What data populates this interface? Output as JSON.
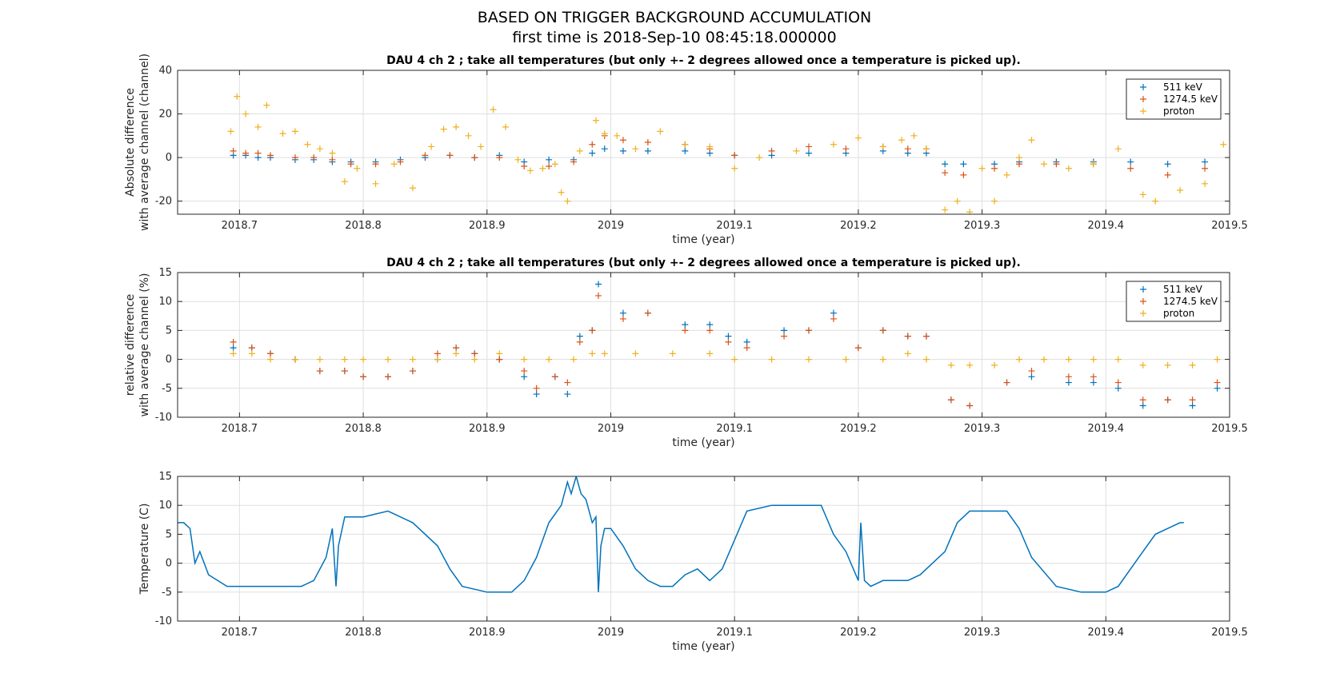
{
  "figure": {
    "title_line1": "BASED ON TRIGGER BACKGROUND ACCUMULATION",
    "title_line2": "first time is 2018-Sep-10 08:45:18.000000"
  },
  "colors": {
    "s511": "#0072BD",
    "s1274": "#D95319",
    "proton": "#EDB120",
    "temp": "#0072BD",
    "grid": "#dfdfdf",
    "axis": "#262626"
  },
  "chart_data": [
    {
      "type": "scatter",
      "title": "DAU 4 ch 2 ; take all temperatures (but only +- 2 degrees allowed once a temperature is picked up).",
      "xlabel": "time (year)",
      "ylabel_line1": "Absolute difference",
      "ylabel_line2": "with average channel (channel)",
      "xlim": [
        2018.65,
        2019.5
      ],
      "ylim": [
        -26,
        40
      ],
      "xticks": [
        2018.7,
        2018.8,
        2018.9,
        2019,
        2019.1,
        2019.2,
        2019.3,
        2019.4,
        2019.5
      ],
      "xtick_labels": [
        "2018.7",
        "2018.8",
        "2018.9",
        "2019",
        "2019.1",
        "2019.2",
        "2019.3",
        "2019.4",
        "2019.5"
      ],
      "yticks": [
        -20,
        0,
        20,
        40
      ],
      "ytick_labels": [
        "-20",
        "0",
        "20",
        "40"
      ],
      "grid": true,
      "legend_position": "top-right",
      "series": [
        {
          "name": "511 keV",
          "color": "#0072BD",
          "x": [
            2018.695,
            2018.705,
            2018.715,
            2018.725,
            2018.745,
            2018.76,
            2018.775,
            2018.79,
            2018.81,
            2018.83,
            2018.85,
            2018.87,
            2018.89,
            2018.91,
            2018.93,
            2018.95,
            2018.97,
            2018.985,
            2018.995,
            2019.01,
            2019.03,
            2019.06,
            2019.08,
            2019.1,
            2019.13,
            2019.16,
            2019.19,
            2019.22,
            2019.24,
            2019.255,
            2019.27,
            2019.285,
            2019.31,
            2019.33,
            2019.36,
            2019.39,
            2019.42,
            2019.45,
            2019.48
          ],
          "y": [
            1,
            1,
            0,
            0,
            -1,
            -1,
            -2,
            -2,
            -2,
            -1,
            0,
            1,
            0,
            1,
            -2,
            -1,
            -1,
            2,
            4,
            3,
            3,
            3,
            2,
            1,
            1,
            2,
            2,
            3,
            2,
            2,
            -3,
            -3,
            -3,
            -2,
            -2,
            -2,
            -2,
            -3,
            -2
          ]
        },
        {
          "name": "1274.5 keV",
          "color": "#D95319",
          "x": [
            2018.695,
            2018.705,
            2018.715,
            2018.725,
            2018.745,
            2018.76,
            2018.775,
            2018.79,
            2018.81,
            2018.83,
            2018.85,
            2018.87,
            2018.89,
            2018.91,
            2018.93,
            2018.95,
            2018.97,
            2018.985,
            2018.995,
            2019.01,
            2019.03,
            2019.06,
            2019.08,
            2019.1,
            2019.13,
            2019.16,
            2019.19,
            2019.22,
            2019.24,
            2019.255,
            2019.27,
            2019.285,
            2019.31,
            2019.33,
            2019.36,
            2019.39,
            2019.42,
            2019.45,
            2019.48
          ],
          "y": [
            3,
            2,
            2,
            1,
            0,
            0,
            -1,
            -3,
            -3,
            -2,
            1,
            1,
            0,
            0,
            -4,
            -4,
            -2,
            6,
            10,
            8,
            7,
            6,
            4,
            1,
            3,
            5,
            4,
            5,
            4,
            4,
            -7,
            -8,
            -5,
            -3,
            -3,
            -3,
            -5,
            -8,
            -5
          ]
        },
        {
          "name": "proton",
          "color": "#EDB120",
          "x": [
            2018.693,
            2018.698,
            2018.705,
            2018.715,
            2018.722,
            2018.735,
            2018.745,
            2018.755,
            2018.765,
            2018.775,
            2018.785,
            2018.795,
            2018.81,
            2018.825,
            2018.84,
            2018.855,
            2018.865,
            2018.875,
            2018.885,
            2018.895,
            2018.905,
            2018.915,
            2018.925,
            2018.935,
            2018.945,
            2018.955,
            2018.96,
            2018.965,
            2018.975,
            2018.988,
            2018.995,
            2019.005,
            2019.02,
            2019.04,
            2019.06,
            2019.08,
            2019.1,
            2019.12,
            2019.15,
            2019.18,
            2019.2,
            2019.22,
            2019.235,
            2019.245,
            2019.255,
            2019.27,
            2019.28,
            2019.29,
            2019.3,
            2019.31,
            2019.32,
            2019.33,
            2019.34,
            2019.35,
            2019.37,
            2019.39,
            2019.41,
            2019.43,
            2019.44,
            2019.46,
            2019.48,
            2019.495
          ],
          "y": [
            12,
            28,
            20,
            14,
            24,
            11,
            12,
            6,
            4,
            2,
            -11,
            -5,
            -12,
            -3,
            -14,
            5,
            13,
            14,
            10,
            5,
            22,
            14,
            -1,
            -6,
            -5,
            -3,
            -16,
            -20,
            3,
            17,
            11,
            10,
            4,
            12,
            6,
            5,
            -5,
            0,
            3,
            6,
            9,
            5,
            8,
            10,
            4,
            -24,
            -20,
            -25,
            -5,
            -20,
            -8,
            0,
            8,
            -3,
            -5,
            -3,
            4,
            -17,
            -20,
            -15,
            -12,
            6
          ]
        }
      ]
    },
    {
      "type": "scatter",
      "title": "DAU 4 ch 2 ; take all temperatures (but only +- 2 degrees allowed once a temperature is picked up).",
      "xlabel": "time (year)",
      "ylabel_line1": "relative difference",
      "ylabel_line2": "with average channel (%)",
      "xlim": [
        2018.65,
        2019.5
      ],
      "ylim": [
        -10,
        15
      ],
      "xticks": [
        2018.7,
        2018.8,
        2018.9,
        2019,
        2019.1,
        2019.2,
        2019.3,
        2019.4,
        2019.5
      ],
      "xtick_labels": [
        "2018.7",
        "2018.8",
        "2018.9",
        "2019",
        "2019.1",
        "2019.2",
        "2019.3",
        "2019.4",
        "2019.5"
      ],
      "yticks": [
        -10,
        -5,
        0,
        5,
        10,
        15
      ],
      "ytick_labels": [
        "-10",
        "-5",
        "0",
        "5",
        "10",
        "15"
      ],
      "grid": true,
      "legend_position": "top-right",
      "series": [
        {
          "name": "511 keV",
          "color": "#0072BD",
          "x": [
            2018.695,
            2018.71,
            2018.725,
            2018.745,
            2018.765,
            2018.785,
            2018.8,
            2018.82,
            2018.84,
            2018.86,
            2018.875,
            2018.89,
            2018.91,
            2018.93,
            2018.94,
            2018.955,
            2018.965,
            2018.975,
            2018.985,
            2018.99,
            2019.01,
            2019.03,
            2019.06,
            2019.08,
            2019.095,
            2019.11,
            2019.14,
            2019.16,
            2019.18,
            2019.2,
            2019.22,
            2019.24,
            2019.255,
            2019.275,
            2019.29,
            2019.32,
            2019.34,
            2019.37,
            2019.39,
            2019.41,
            2019.43,
            2019.45,
            2019.47,
            2019.49
          ],
          "y": [
            2,
            2,
            1,
            0,
            -2,
            -2,
            -3,
            -3,
            -2,
            0,
            2,
            1,
            0,
            -3,
            -6,
            -3,
            -6,
            4,
            5,
            13,
            8,
            8,
            6,
            6,
            4,
            3,
            5,
            5,
            8,
            2,
            5,
            4,
            4,
            -7,
            -8,
            -4,
            -3,
            -4,
            -4,
            -5,
            -8,
            -7,
            -8,
            -5
          ]
        },
        {
          "name": "1274.5 keV",
          "color": "#D95319",
          "x": [
            2018.695,
            2018.71,
            2018.725,
            2018.745,
            2018.765,
            2018.785,
            2018.8,
            2018.82,
            2018.84,
            2018.86,
            2018.875,
            2018.89,
            2018.91,
            2018.93,
            2018.94,
            2018.955,
            2018.965,
            2018.975,
            2018.985,
            2018.99,
            2019.01,
            2019.03,
            2019.06,
            2019.08,
            2019.095,
            2019.11,
            2019.14,
            2019.16,
            2019.18,
            2019.2,
            2019.22,
            2019.24,
            2019.255,
            2019.275,
            2019.29,
            2019.32,
            2019.34,
            2019.37,
            2019.39,
            2019.41,
            2019.43,
            2019.45,
            2019.47,
            2019.49
          ],
          "y": [
            3,
            2,
            1,
            0,
            -2,
            -2,
            -3,
            -3,
            -2,
            1,
            2,
            1,
            0,
            -2,
            -5,
            -3,
            -4,
            3,
            5,
            11,
            7,
            8,
            5,
            5,
            3,
            2,
            4,
            5,
            7,
            2,
            5,
            4,
            4,
            -7,
            -8,
            -4,
            -2,
            -3,
            -3,
            -4,
            -7,
            -7,
            -7,
            -4
          ]
        },
        {
          "name": "proton",
          "color": "#EDB120",
          "x": [
            2018.695,
            2018.71,
            2018.725,
            2018.745,
            2018.765,
            2018.785,
            2018.8,
            2018.82,
            2018.84,
            2018.86,
            2018.875,
            2018.89,
            2018.91,
            2018.93,
            2018.95,
            2018.97,
            2018.985,
            2018.995,
            2019.02,
            2019.05,
            2019.08,
            2019.1,
            2019.13,
            2019.16,
            2019.19,
            2019.22,
            2019.24,
            2019.255,
            2019.275,
            2019.29,
            2019.31,
            2019.33,
            2019.35,
            2019.37,
            2019.39,
            2019.41,
            2019.43,
            2019.45,
            2019.47,
            2019.49
          ],
          "y": [
            1,
            1,
            0,
            0,
            0,
            0,
            0,
            0,
            0,
            0,
            1,
            0,
            1,
            0,
            0,
            0,
            1,
            1,
            1,
            1,
            1,
            0,
            0,
            0,
            0,
            0,
            1,
            0,
            -1,
            -1,
            -1,
            0,
            0,
            0,
            0,
            0,
            -1,
            -1,
            -1,
            0
          ]
        }
      ]
    },
    {
      "type": "line",
      "title": "",
      "xlabel": "time (year)",
      "ylabel": "Temperature (C)",
      "xlim": [
        2018.65,
        2019.5
      ],
      "ylim": [
        -10,
        15
      ],
      "xticks": [
        2018.7,
        2018.8,
        2018.9,
        2019,
        2019.1,
        2019.2,
        2019.3,
        2019.4,
        2019.5
      ],
      "xtick_labels": [
        "2018.7",
        "2018.8",
        "2018.9",
        "2019",
        "2019.1",
        "2019.2",
        "2019.3",
        "2019.4",
        "2019.5"
      ],
      "yticks": [
        -10,
        -5,
        0,
        5,
        10,
        15
      ],
      "ytick_labels": [
        "-10",
        "-5",
        "0",
        "5",
        "10",
        "15"
      ],
      "grid": true,
      "series": [
        {
          "name": "",
          "color": "#0072BD",
          "x": [
            2018.65,
            2018.655,
            2018.66,
            2018.664,
            2018.668,
            2018.675,
            2018.69,
            2018.7,
            2018.72,
            2018.74,
            2018.75,
            2018.76,
            2018.77,
            2018.775,
            2018.778,
            2018.78,
            2018.785,
            2018.79,
            2018.8,
            2018.82,
            2018.83,
            2018.84,
            2018.86,
            2018.87,
            2018.88,
            2018.9,
            2018.92,
            2018.93,
            2018.94,
            2018.95,
            2018.96,
            2018.965,
            2018.968,
            2018.972,
            2018.976,
            2018.98,
            2018.985,
            2018.988,
            2018.99,
            2018.992,
            2018.995,
            2019,
            2019.01,
            2019.02,
            2019.03,
            2019.04,
            2019.05,
            2019.06,
            2019.07,
            2019.08,
            2019.09,
            2019.1,
            2019.11,
            2019.13,
            2019.15,
            2019.16,
            2019.17,
            2019.18,
            2019.19,
            2019.2,
            2019.202,
            2019.205,
            2019.21,
            2019.22,
            2019.23,
            2019.24,
            2019.25,
            2019.26,
            2019.27,
            2019.28,
            2019.29,
            2019.31,
            2019.32,
            2019.33,
            2019.34,
            2019.36,
            2019.38,
            2019.4,
            2019.41,
            2019.42,
            2019.43,
            2019.44,
            2019.45,
            2019.46,
            2019.463
          ],
          "y": [
            7,
            7,
            6,
            0,
            2,
            -2,
            -4,
            -4,
            -4,
            -4,
            -4,
            -3,
            1,
            6,
            -4,
            3,
            8,
            8,
            8,
            9,
            8,
            7,
            3,
            -1,
            -4,
            -5,
            -5,
            -3,
            1,
            7,
            10,
            14,
            12,
            15,
            12,
            11,
            7,
            8,
            -5,
            3,
            6,
            6,
            3,
            -1,
            -3,
            -4,
            -4,
            -2,
            -1,
            -3,
            -1,
            4,
            9,
            10,
            10,
            10,
            10,
            5,
            2,
            -3,
            7,
            -3,
            -4,
            -3,
            -3,
            -3,
            -2,
            0,
            2,
            7,
            9,
            9,
            9,
            6,
            1,
            -4,
            -5,
            -5,
            -4,
            -1,
            2,
            5,
            6,
            7,
            7
          ]
        }
      ]
    }
  ]
}
